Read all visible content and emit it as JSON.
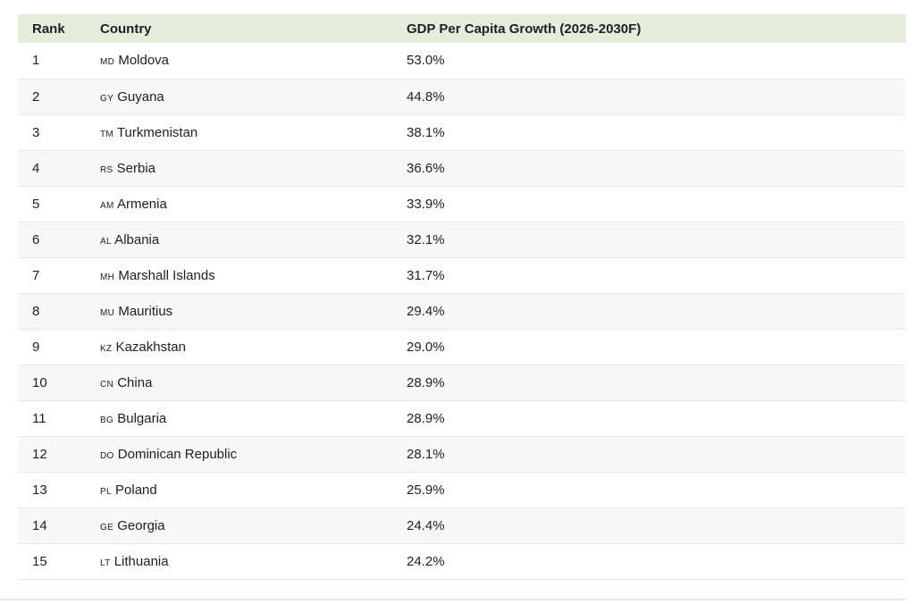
{
  "colors": {
    "header_bg": "#e5eedd",
    "row_alt_bg": "#f8f8f8",
    "border": "#e7e7e7",
    "text": "#202124",
    "divider": "#e8e8e8"
  },
  "chart_data": {
    "type": "table",
    "title": "",
    "columns": [
      "Rank",
      "Country",
      "GDP Per Capita Growth (2026-2030F)"
    ],
    "value_unit": "%",
    "rows": [
      {
        "rank": "1",
        "code": "MD",
        "country": "Moldova",
        "value_pct": 53.0,
        "value_label": "53.0%"
      },
      {
        "rank": "2",
        "code": "GY",
        "country": "Guyana",
        "value_pct": 44.8,
        "value_label": "44.8%"
      },
      {
        "rank": "3",
        "code": "TM",
        "country": "Turkmenistan",
        "value_pct": 38.1,
        "value_label": "38.1%"
      },
      {
        "rank": "4",
        "code": "RS",
        "country": "Serbia",
        "value_pct": 36.6,
        "value_label": "36.6%"
      },
      {
        "rank": "5",
        "code": "AM",
        "country": "Armenia",
        "value_pct": 33.9,
        "value_label": "33.9%"
      },
      {
        "rank": "6",
        "code": "AL",
        "country": "Albania",
        "value_pct": 32.1,
        "value_label": "32.1%"
      },
      {
        "rank": "7",
        "code": "MH",
        "country": "Marshall Islands",
        "value_pct": 31.7,
        "value_label": "31.7%"
      },
      {
        "rank": "8",
        "code": "MU",
        "country": "Mauritius",
        "value_pct": 29.4,
        "value_label": "29.4%"
      },
      {
        "rank": "9",
        "code": "KZ",
        "country": "Kazakhstan",
        "value_pct": 29.0,
        "value_label": "29.0%"
      },
      {
        "rank": "10",
        "code": "CN",
        "country": "China",
        "value_pct": 28.9,
        "value_label": "28.9%"
      },
      {
        "rank": "11",
        "code": "BG",
        "country": "Bulgaria",
        "value_pct": 28.9,
        "value_label": "28.9%"
      },
      {
        "rank": "12",
        "code": "DO",
        "country": "Dominican Republic",
        "value_pct": 28.1,
        "value_label": "28.1%"
      },
      {
        "rank": "13",
        "code": "PL",
        "country": "Poland",
        "value_pct": 25.9,
        "value_label": "25.9%"
      },
      {
        "rank": "14",
        "code": "GE",
        "country": "Georgia",
        "value_pct": 24.4,
        "value_label": "24.4%"
      },
      {
        "rank": "15",
        "code": "LT",
        "country": "Lithuania",
        "value_pct": 24.2,
        "value_label": "24.2%"
      }
    ]
  }
}
